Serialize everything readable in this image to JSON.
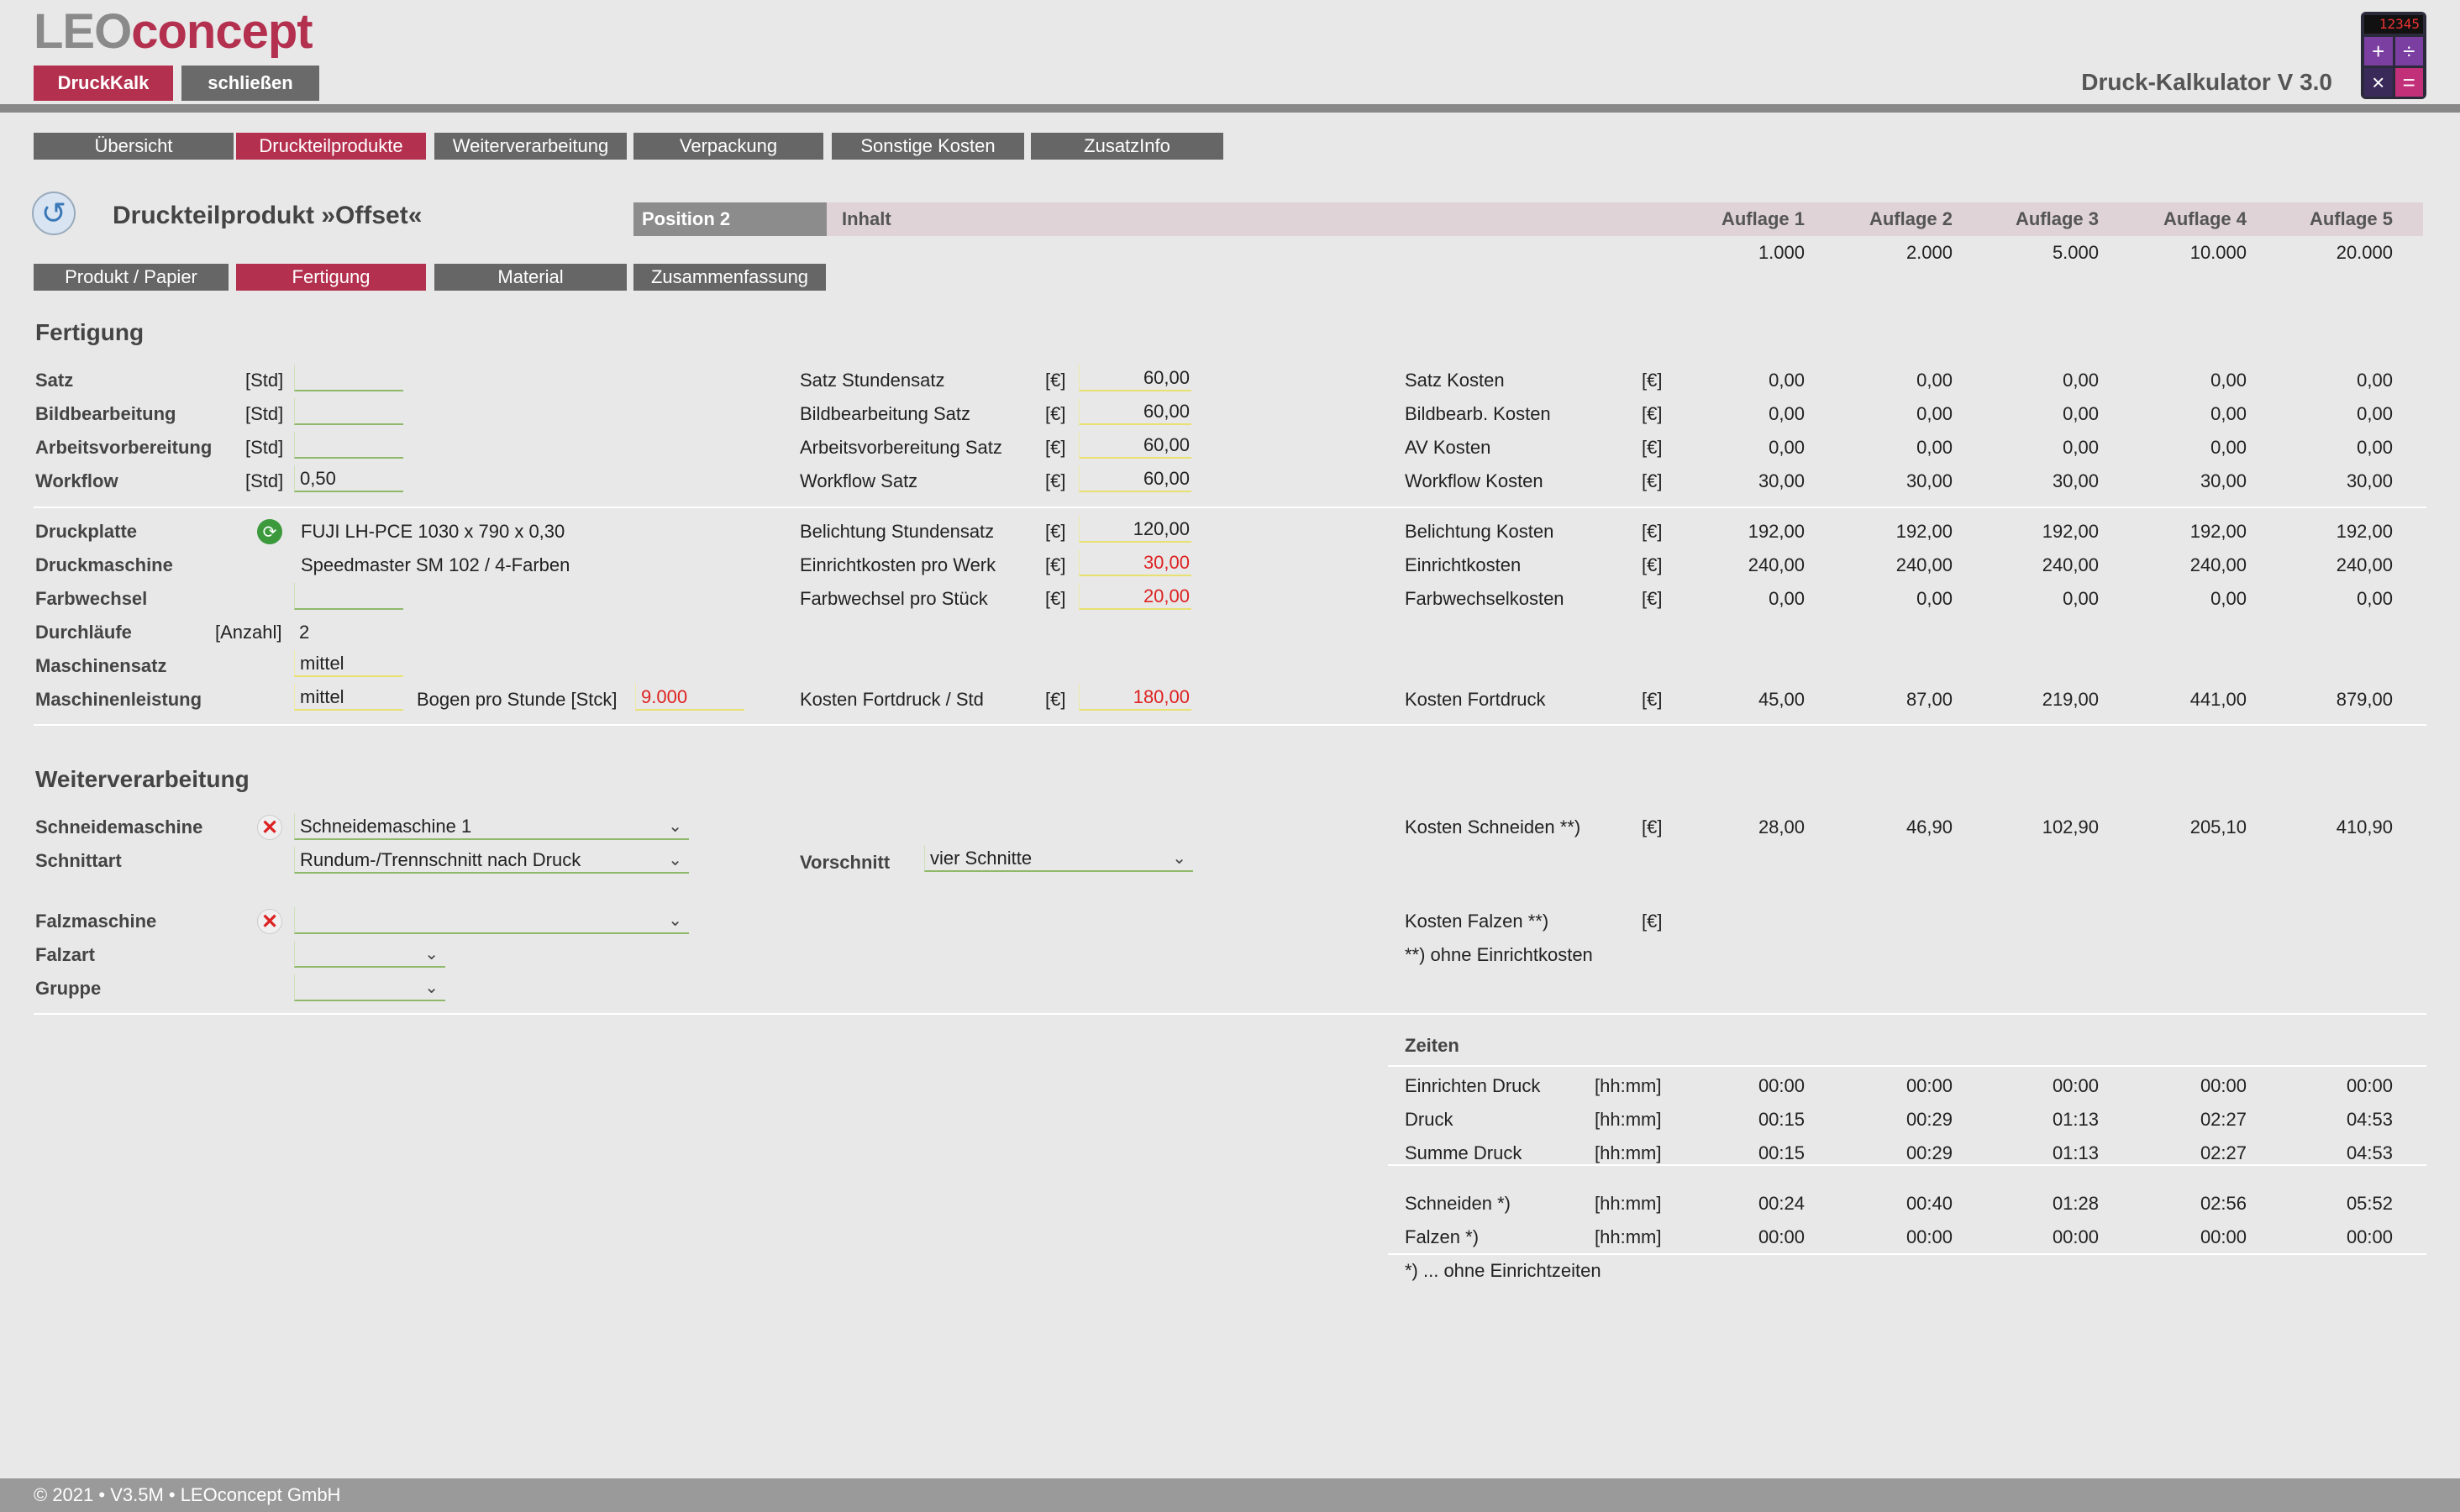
{
  "header": {
    "logo_part1": "LEO",
    "logo_part2": "concept",
    "app_button": "DruckKalk",
    "close_button": "schließen",
    "app_title": "Druck-Kalkulator V 3.0",
    "calculator_display": "12345",
    "calculator_keys": [
      "+",
      "÷",
      "×",
      "="
    ]
  },
  "nav": {
    "tabs": [
      "Übersicht",
      "Druckteilprodukte",
      "Weiterverarbeitung",
      "Verpackung",
      "Sonstige Kosten",
      "ZusatzInfo"
    ],
    "active": "Druckteilprodukte"
  },
  "product": {
    "title": "Druckteilprodukt »Offset«",
    "position": "Position 2",
    "inhalt": "Inhalt",
    "auflagen_headers": [
      "Auflage 1",
      "Auflage 2",
      "Auflage 3",
      "Auflage 4",
      "Auflage 5"
    ],
    "auflagen_values": [
      "1.000",
      "2.000",
      "5.000",
      "10.000",
      "20.000"
    ]
  },
  "subtabs": {
    "items": [
      "Produkt / Papier",
      "Fertigung",
      "Material",
      "Zusammenfassung"
    ],
    "active": "Fertigung"
  },
  "fertigung": {
    "title": "Fertigung",
    "rows": [
      {
        "label": "Satz",
        "unit": "[Std]",
        "value": "",
        "rate_label": "Satz Stundensatz",
        "rate_unit": "[€]",
        "rate": "60,00",
        "cost_label": "Satz Kosten",
        "cost_unit": "[€]",
        "costs": [
          "0,00",
          "0,00",
          "0,00",
          "0,00",
          "0,00"
        ]
      },
      {
        "label": "Bildbearbeitung",
        "unit": "[Std]",
        "value": "",
        "rate_label": "Bildbearbeitung Satz",
        "rate_unit": "[€]",
        "rate": "60,00",
        "cost_label": "Bildbearb. Kosten",
        "cost_unit": "[€]",
        "costs": [
          "0,00",
          "0,00",
          "0,00",
          "0,00",
          "0,00"
        ]
      },
      {
        "label": "Arbeitsvorbereitung",
        "unit": "[Std]",
        "value": "",
        "rate_label": "Arbeitsvorbereitung Satz",
        "rate_unit": "[€]",
        "rate": "60,00",
        "cost_label": "AV Kosten",
        "cost_unit": "[€]",
        "costs": [
          "0,00",
          "0,00",
          "0,00",
          "0,00",
          "0,00"
        ]
      },
      {
        "label": "Workflow",
        "unit": "[Std]",
        "value": "0,50",
        "rate_label": "Workflow Satz",
        "rate_unit": "[€]",
        "rate": "60,00",
        "cost_label": "Workflow Kosten",
        "cost_unit": "[€]",
        "costs": [
          "30,00",
          "30,00",
          "30,00",
          "30,00",
          "30,00"
        ]
      }
    ],
    "druckplatte": {
      "label": "Druckplatte",
      "value": "FUJI LH-PCE 1030 x 790 x 0,30",
      "rate_label": "Belichtung Stundensatz",
      "rate_unit": "[€]",
      "rate": "120,00",
      "cost_label": "Belichtung Kosten",
      "cost_unit": "[€]",
      "costs": [
        "192,00",
        "192,00",
        "192,00",
        "192,00",
        "192,00"
      ]
    },
    "druckmaschine": {
      "label": "Druckmaschine",
      "value": "Speedmaster SM 102 / 4-Farben",
      "rate_label": "Einrichtkosten pro Werk",
      "rate_unit": "[€]",
      "rate": "30,00",
      "cost_label": "Einrichtkosten",
      "cost_unit": "[€]",
      "costs": [
        "240,00",
        "240,00",
        "240,00",
        "240,00",
        "240,00"
      ]
    },
    "farbwechsel": {
      "label": "Farbwechsel",
      "value": "",
      "rate_label": "Farbwechsel pro Stück",
      "rate_unit": "[€]",
      "rate": "20,00",
      "cost_label": "Farbwechselkosten",
      "cost_unit": "[€]",
      "costs": [
        "0,00",
        "0,00",
        "0,00",
        "0,00",
        "0,00"
      ]
    },
    "durchlaeufe": {
      "label": "Durchläufe",
      "unit": "[Anzahl]",
      "value": "2"
    },
    "maschinensatz": {
      "label": "Maschinensatz",
      "value": "mittel"
    },
    "maschinenleistung": {
      "label": "Maschinenleistung",
      "value": "mittel",
      "bogen_label": "Bogen pro Stunde [Stck]",
      "bogen_value": "9.000",
      "rate_label": "Kosten Fortdruck / Std",
      "rate_unit": "[€]",
      "rate": "180,00",
      "cost_label": "Kosten Fortdruck",
      "cost_unit": "[€]",
      "costs": [
        "45,00",
        "87,00",
        "219,00",
        "441,00",
        "879,00"
      ]
    }
  },
  "weiterverarbeitung": {
    "title": "Weiterverarbeitung",
    "schneidemaschine_label": "Schneidemaschine",
    "schneidemaschine_value": "Schneidemaschine 1",
    "schnittart_label": "Schnittart",
    "schnittart_value": "Rundum-/Trennschnitt nach Druck",
    "vorschnitt_label": "Vorschnitt",
    "vorschnitt_value": "vier Schnitte",
    "kosten_schneiden_label": "Kosten Schneiden **)",
    "kosten_schneiden_unit": "[€]",
    "kosten_schneiden": [
      "28,00",
      "46,90",
      "102,90",
      "205,10",
      "410,90"
    ],
    "falzmaschine_label": "Falzmaschine",
    "falzmaschine_value": "",
    "falzart_label": "Falzart",
    "gruppe_label": "Gruppe",
    "kosten_falzen_label": "Kosten Falzen **)",
    "kosten_falzen_unit": "[€]",
    "note": "**) ohne Einrichtkosten"
  },
  "zeiten": {
    "title": "Zeiten",
    "rows": [
      {
        "label": "Einrichten Druck",
        "unit": "[hh:mm]",
        "values": [
          "00:00",
          "00:00",
          "00:00",
          "00:00",
          "00:00"
        ]
      },
      {
        "label": "Druck",
        "unit": "[hh:mm]",
        "values": [
          "00:15",
          "00:29",
          "01:13",
          "02:27",
          "04:53"
        ]
      },
      {
        "label": "Summe Druck",
        "unit": "[hh:mm]",
        "values": [
          "00:15",
          "00:29",
          "01:13",
          "02:27",
          "04:53"
        ]
      },
      {
        "label": "Schneiden *)",
        "unit": "[hh:mm]",
        "values": [
          "00:24",
          "00:40",
          "01:28",
          "02:56",
          "05:52"
        ]
      },
      {
        "label": "Falzen *)",
        "unit": "[hh:mm]",
        "values": [
          "00:00",
          "00:00",
          "00:00",
          "00:00",
          "00:00"
        ]
      }
    ],
    "note": "*) ... ohne Einrichtzeiten"
  },
  "footer": {
    "text": "© 2021 • V3.5M • LEOconcept GmbH"
  },
  "colors": {
    "accent": "#b4304f",
    "tab_gray": "#666666",
    "background": "#e8e8e8"
  }
}
